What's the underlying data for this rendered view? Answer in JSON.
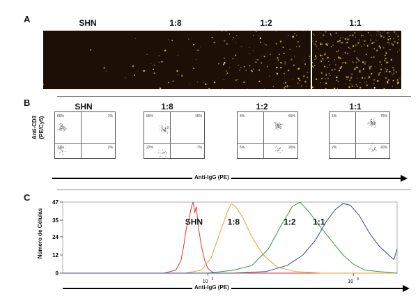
{
  "panel_a": {
    "letter": "A",
    "labels": [
      "SHN",
      "1:8",
      "1:2",
      "1:1"
    ],
    "dot_density": [
      0.02,
      0.15,
      0.45,
      1.0
    ]
  },
  "panel_b": {
    "letter": "B",
    "labels": [
      "SHN",
      "1:8",
      "1:2",
      "1:1"
    ],
    "y_axis_label_line1": "Anti-CD3",
    "y_axis_label_line2": "(PE/Cy5)",
    "x_axis_label": "Anti-IgG (PE)",
    "quadrants": [
      {
        "ul": "66%",
        "ur": "1%",
        "ll": "31%",
        "lr": "2%"
      },
      {
        "ul": "55%",
        "ur": "16%",
        "ll": "22%",
        "lr": "7%"
      },
      {
        "ul": "4%",
        "ur": "65%",
        "ll": "5%",
        "lr": "26%"
      },
      {
        "ul": "1%",
        "ur": "75%",
        "ll": "2%",
        "lr": "20%"
      }
    ]
  },
  "panel_c": {
    "letter": "C",
    "y_axis_label": "Número de Células",
    "x_axis_label": "Anti-IgG (PE)",
    "x_tick_labels": [
      "10",
      "2",
      "10",
      "3"
    ],
    "chart_data": {
      "type": "line",
      "x_scale": "log",
      "xlim": [
        10,
        2000
      ],
      "ylim": [
        0,
        47
      ],
      "yticks": [
        "0",
        "12",
        "24",
        "35",
        "47"
      ],
      "series": [
        {
          "name": "SHN",
          "color": "#e0312c",
          "label_x": 80,
          "label_y": 32,
          "points": [
            [
              10,
              0
            ],
            [
              50,
              0
            ],
            [
              60,
              2
            ],
            [
              65,
              8
            ],
            [
              68,
              18
            ],
            [
              71,
              30
            ],
            [
              74,
              36
            ],
            [
              77,
              44
            ],
            [
              79,
              47
            ],
            [
              81,
              40
            ],
            [
              83,
              44
            ],
            [
              86,
              30
            ],
            [
              90,
              18
            ],
            [
              95,
              8
            ],
            [
              100,
              3
            ],
            [
              110,
              0
            ],
            [
              150,
              0
            ],
            [
              2000,
              0
            ]
          ]
        },
        {
          "name": "1:8",
          "color": "#f39a30",
          "label_x": 150,
          "label_y": 32,
          "points": [
            [
              10,
              0
            ],
            [
              70,
              0
            ],
            [
              90,
              2
            ],
            [
              105,
              10
            ],
            [
              120,
              26
            ],
            [
              135,
              40
            ],
            [
              145,
              46
            ],
            [
              155,
              44
            ],
            [
              175,
              36
            ],
            [
              200,
              24
            ],
            [
              240,
              12
            ],
            [
              300,
              4
            ],
            [
              400,
              1
            ],
            [
              600,
              0
            ],
            [
              2000,
              0
            ]
          ]
        },
        {
          "name": "1:2",
          "color": "#2f9a3a",
          "label_x": 365,
          "label_y": 32,
          "points": [
            [
              10,
              0
            ],
            [
              100,
              0
            ],
            [
              150,
              2
            ],
            [
              200,
              5
            ],
            [
              260,
              16
            ],
            [
              320,
              32
            ],
            [
              380,
              44
            ],
            [
              430,
              47
            ],
            [
              500,
              40
            ],
            [
              600,
              30
            ],
            [
              700,
              22
            ],
            [
              850,
              12
            ],
            [
              1000,
              6
            ],
            [
              1200,
              2
            ],
            [
              1500,
              1
            ],
            [
              2000,
              0
            ]
          ]
        },
        {
          "name": "1:1",
          "color": "#3845a3",
          "label_x": 580,
          "label_y": 32,
          "points": [
            [
              10,
              0
            ],
            [
              150,
              0
            ],
            [
              250,
              1
            ],
            [
              350,
              5
            ],
            [
              450,
              12
            ],
            [
              550,
              22
            ],
            [
              650,
              34
            ],
            [
              750,
              42
            ],
            [
              850,
              46
            ],
            [
              950,
              45
            ],
            [
              1100,
              38
            ],
            [
              1300,
              26
            ],
            [
              1500,
              18
            ],
            [
              1750,
              12
            ],
            [
              1900,
              9
            ],
            [
              2000,
              16
            ]
          ]
        }
      ]
    }
  }
}
